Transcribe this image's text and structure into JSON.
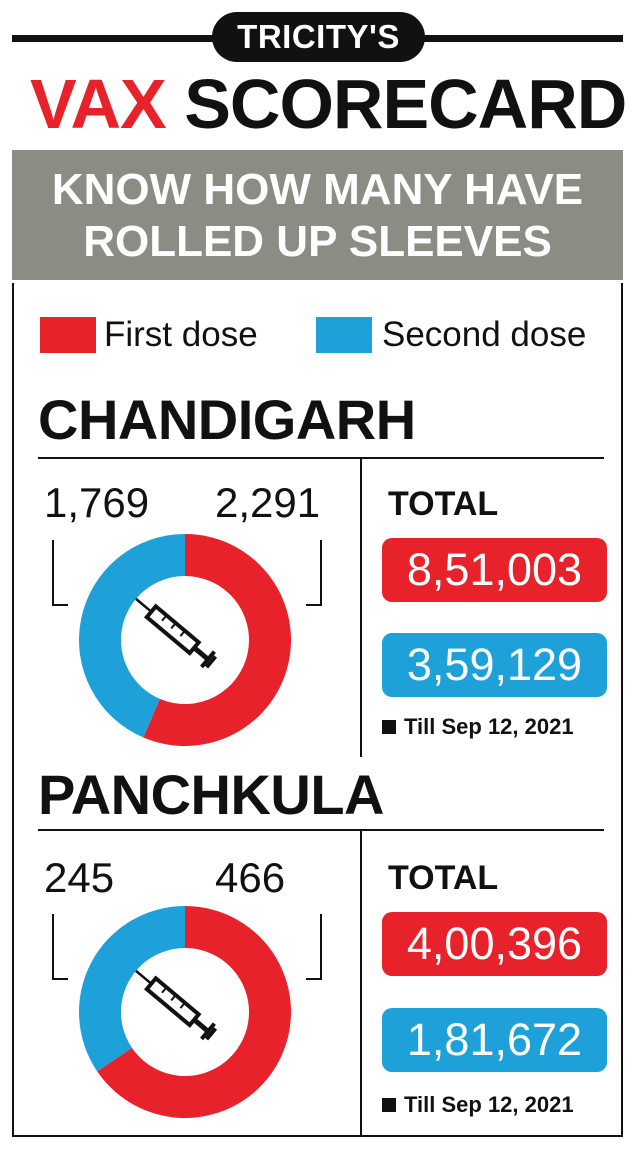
{
  "header": {
    "kicker": "TRICITY'S",
    "title_red": "VAX",
    "title_black": "SCORECARD",
    "banner_line1": "KNOW HOW MANY HAVE",
    "banner_line2": "ROLLED UP SLEEVES"
  },
  "legend": [
    {
      "label": "First dose",
      "color": "#e8222a"
    },
    {
      "label": "Second dose",
      "color": "#1ea1d9"
    }
  ],
  "chart_data": [
    {
      "type": "pie",
      "title": "CHANDIGARH",
      "donut": true,
      "series": [
        {
          "name": "First dose",
          "value": 2291,
          "color": "#e8222a"
        },
        {
          "name": "Second dose",
          "value": 1769,
          "color": "#1ea1d9"
        }
      ],
      "labels": [
        "1,769",
        "2,291"
      ],
      "total_label": "TOTAL",
      "totals": {
        "first_dose": "8,51,003",
        "second_dose": "3,59,129"
      },
      "note": "Till Sep 12, 2021"
    },
    {
      "type": "pie",
      "title": "PANCHKULA",
      "donut": true,
      "series": [
        {
          "name": "First dose",
          "value": 466,
          "color": "#e8222a"
        },
        {
          "name": "Second dose",
          "value": 245,
          "color": "#1ea1d9"
        }
      ],
      "labels": [
        "245",
        "466"
      ],
      "total_label": "TOTAL",
      "totals": {
        "first_dose": "4,00,396",
        "second_dose": "1,81,672"
      },
      "note": "Till Sep 12, 2021"
    }
  ]
}
